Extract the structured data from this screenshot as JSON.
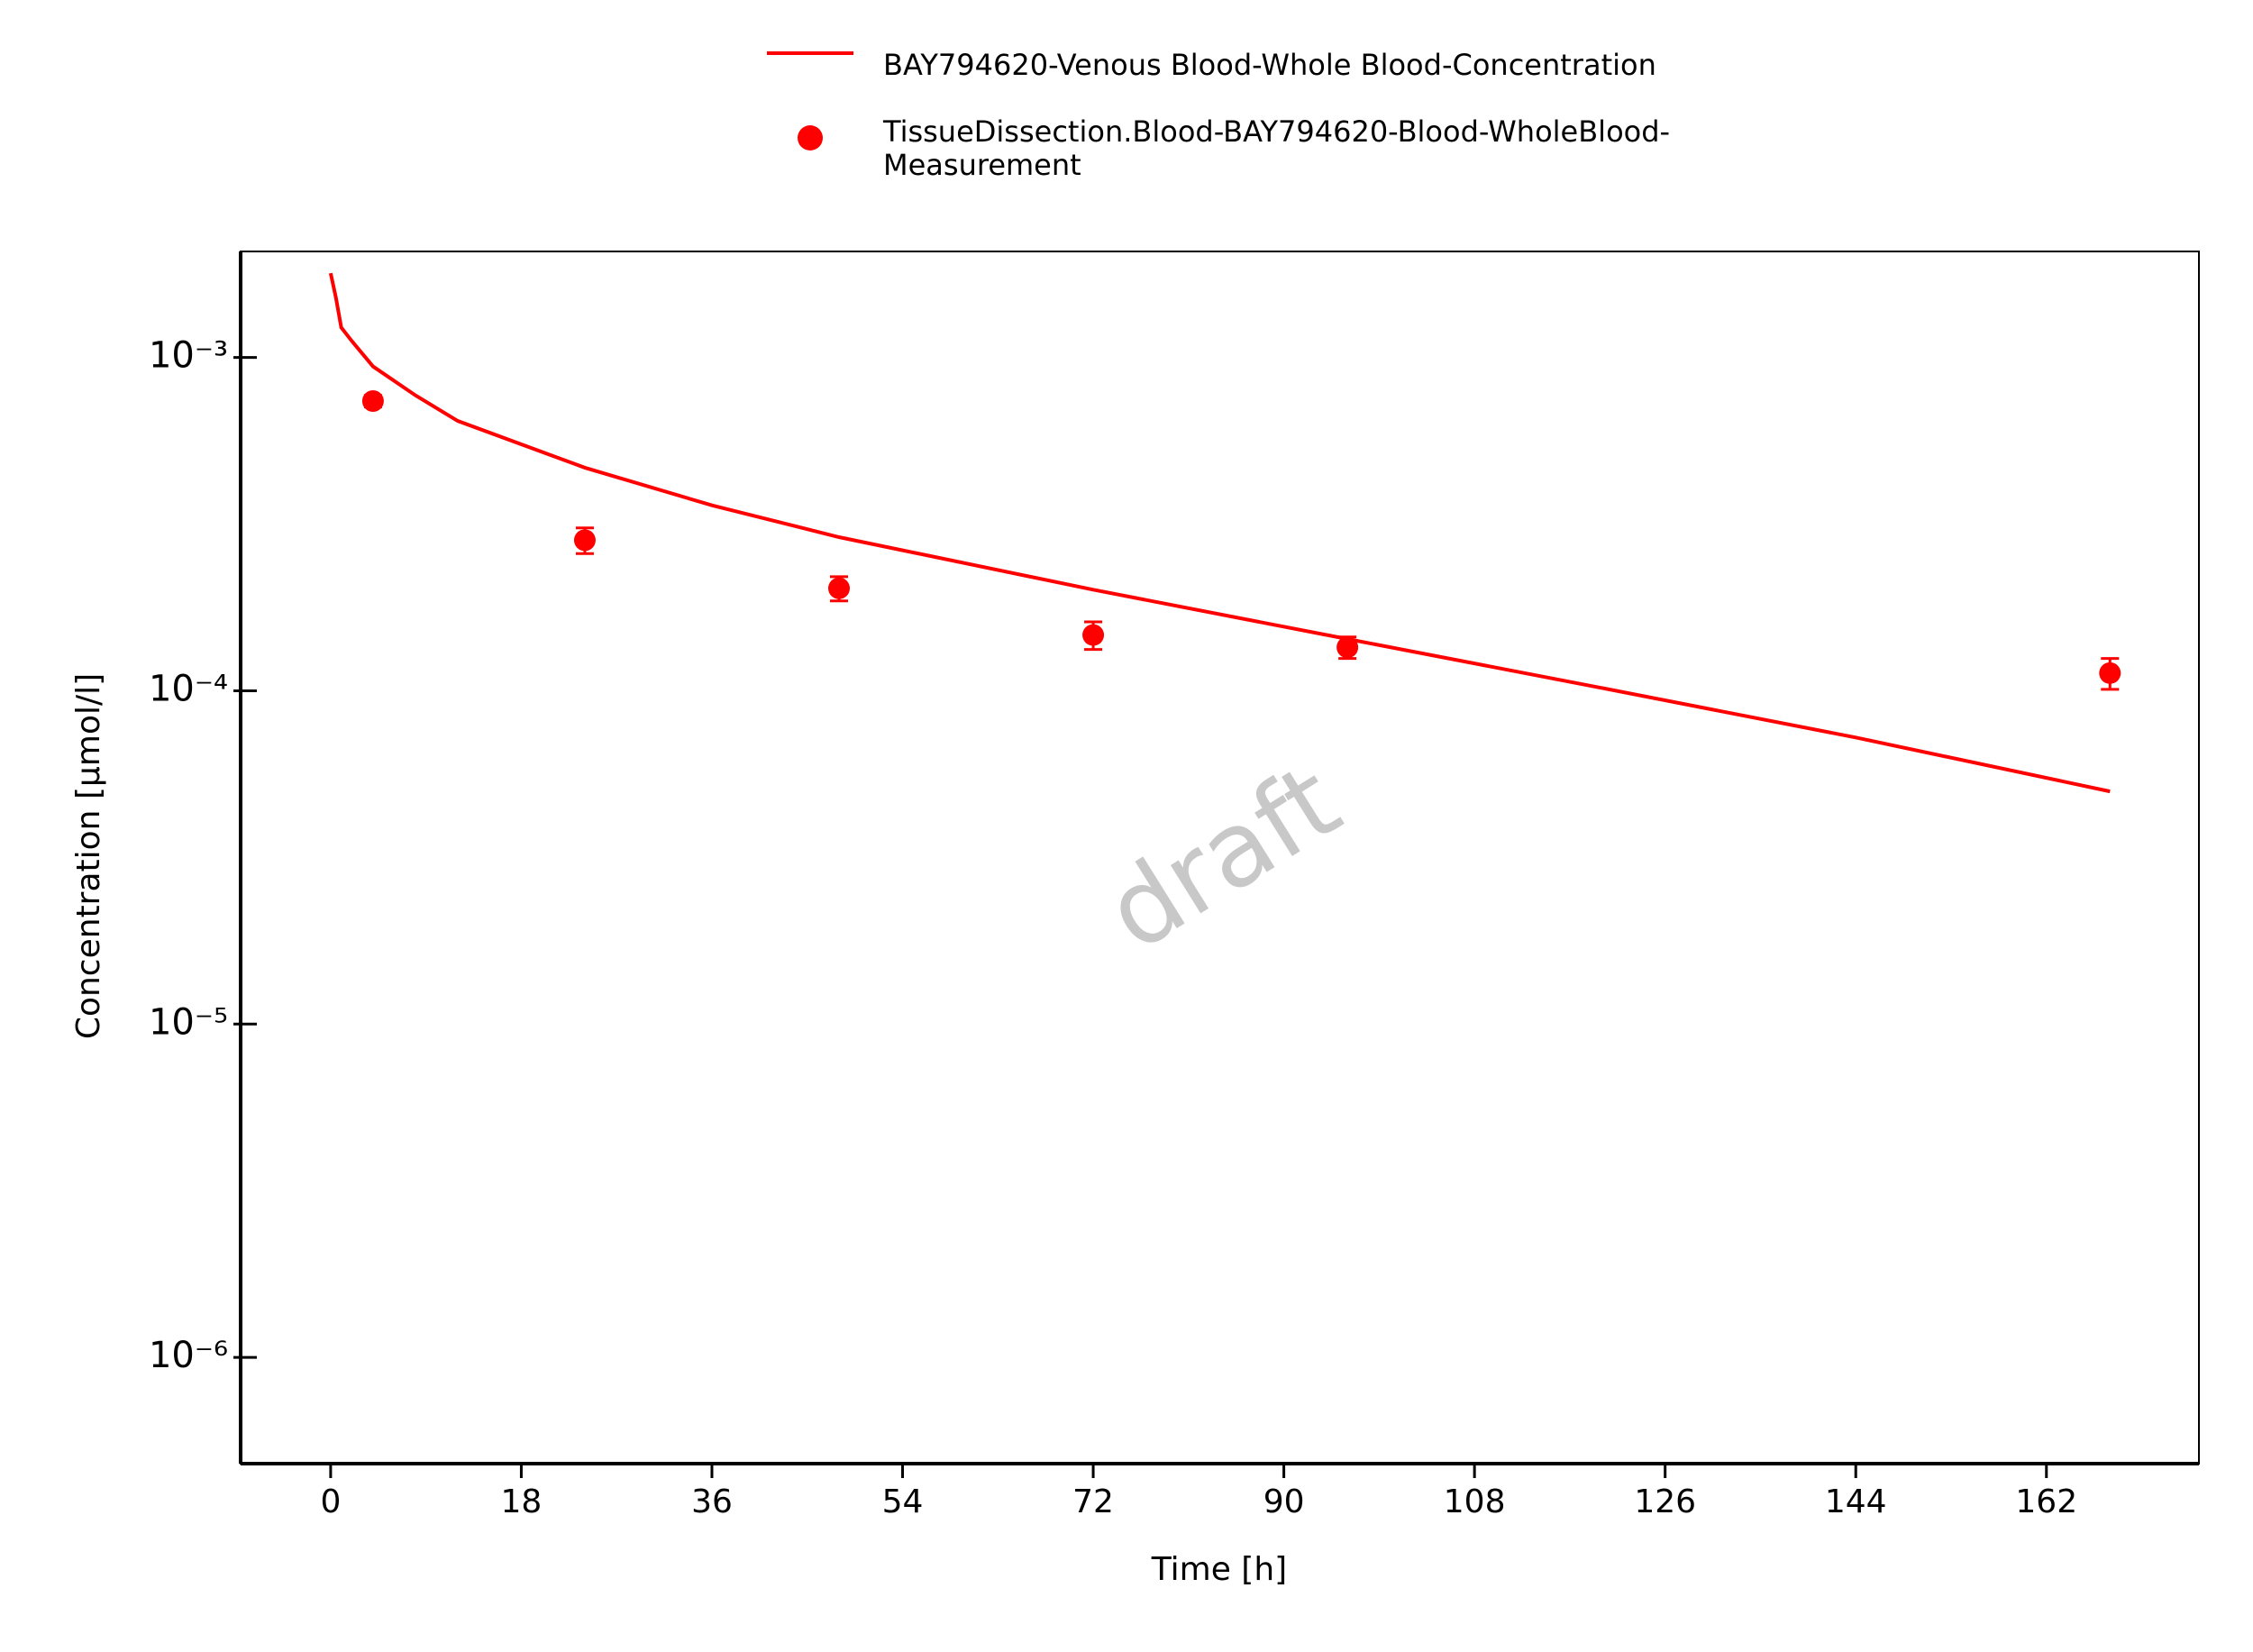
{
  "chart_data": {
    "type": "line",
    "xlabel": "Time [h]",
    "ylabel": "Concentration [µmol/l]",
    "watermark": "draft",
    "log_y": true,
    "xlim": [
      -8.5,
      176.4
    ],
    "xticks": [
      0,
      18,
      36,
      54,
      72,
      90,
      108,
      126,
      144,
      162
    ],
    "ylim": [
      4.8e-07,
      0.00208
    ],
    "yticks": [
      {
        "value": 0.001,
        "label": "10⁻³"
      },
      {
        "value": 0.0001,
        "label": "10⁻⁴"
      },
      {
        "value": 1e-05,
        "label": "10⁻⁵"
      },
      {
        "value": 1e-06,
        "label": "10⁻⁶"
      }
    ],
    "series": [
      {
        "name": "BAY794620-Venous Blood-Whole Blood-Concentration",
        "color": "#ff0000",
        "style": "line",
        "x": [
          0,
          0.5,
          1,
          2,
          4,
          8,
          12,
          24,
          36,
          48,
          72,
          96,
          120,
          144,
          168
        ],
        "values": [
          0.00179,
          0.00151,
          0.00123,
          0.00112,
          0.00094,
          0.00077,
          0.000645,
          0.000467,
          0.00036,
          0.000289,
          0.000201,
          0.000143,
          0.000102,
          7.24e-05,
          4.99e-05
        ]
      },
      {
        "name": "TissueDissection.Blood-BAY794620-Blood-WholeBlood-Measurement",
        "color": "#ff0000",
        "style": "marker",
        "x": [
          4,
          24,
          48,
          72,
          96,
          168
        ],
        "values": [
          0.00074,
          0.000283,
          0.000203,
          0.000147,
          0.000135,
          0.000113
        ],
        "errors": [
          3e-05,
          2.5e-05,
          1.7e-05,
          1.4e-05,
          1e-05,
          1.2e-05
        ]
      }
    ]
  }
}
